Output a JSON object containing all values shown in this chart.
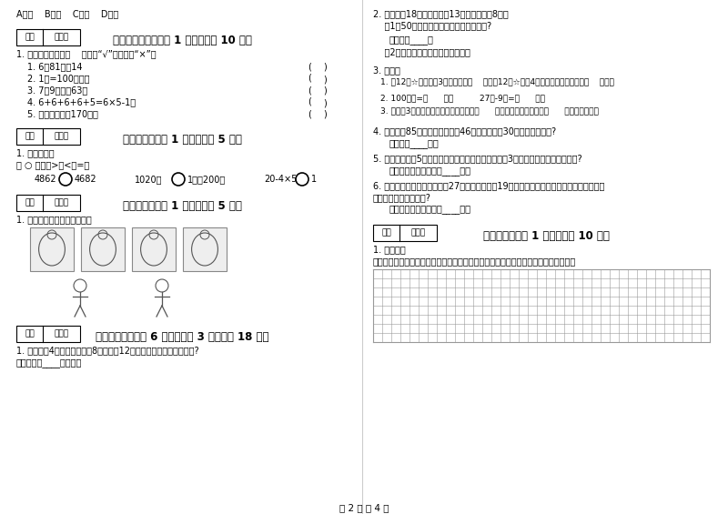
{
  "bg_color": "#ffffff",
  "page_width": 8.0,
  "page_height": 5.65,
  "dpi": 100,
  "left_col": {
    "top_text": "A、时    B、角    C、分    D、米",
    "section5_header": "五、判断对与错（共 1 大题，共计 10 分）",
    "section5_q1": "1. 判断题。对的在（    ）里画“√”，错的画“×”。",
    "section5_items": [
      "1. 6的81倍是14",
      "2. 1米=100厘米。",
      "3. 7个9相加得63。",
      "4. 6+6+6+6+5=6×5-1。",
      "5. 李老师身高是170米。"
    ],
    "section6_header": "六、比一比（共 1 大题，共计 5 分）",
    "section6_q1": "1. 我会比较。",
    "section6_instruction": "在 ○ 里填上>、<或=。",
    "section7_header": "七、连一连（共 1 大题，共计 5 分）",
    "section7_q1": "1. 连一连被子里看到的图像。",
    "section8_header": "八、解决问题（共 6 小题，每题 3 分，共计 18 分）",
    "section8_q1": "1. 果园里有4行苹果树，每行8棵，还有12棵梨树，一共有多少棵果树?",
    "section8_a1": "答：一共有____棵果树。"
  },
  "right_col": {
    "q2_line1": "2. 玩具汽车18元，玩具飞机13元，玩具轮电8元。",
    "q2_line2": "    （1）50元能买哪两件玩具，还剂多少钱?",
    "q2_a1": "答：还剂____元",
    "q2_a2": "    （2）你还能提什么问题？并解答。",
    "q3_text": "3. 填空。",
    "q3_item1": "1. 把12个☆平均分成3份，每份是（    ）个；12个☆，每4个分成一份，可以分成（    ）份。",
    "q3_item2": "2. 100厘米=（      ）米          27米-9米=（      ）米",
    "q3_item3": "3. 画一最3厘米长的线段，一般应从尺的（      ）刻度开始画起，画到（      ）厘米的地方。",
    "q4_text": "4. 食品店有85听可乐，上午卖了46听，下午卖了30听，还剂多少听?",
    "q4_answer": "答：还剂____听。",
    "q5_text": "5. 二年级一班有5个红皮球，黄皮球的个数是红皮球的3倍，黄皮球比红皮球多几个?",
    "q5_answer": "答：黄皮球比红皮球多____个。",
    "q6_line1": "6. 同学们去郊游，一年级去了27人，二年级去了19人，三年级去的人数与二年级同样多，三",
    "q6_line2": "个年级一共去了多少人?",
    "q6_answer": "答：三个年级一共去了____人。",
    "section10_header": "十、综合题（共 1 大题，共计 10 分）",
    "section10_q1": "1. 操作题。",
    "section10_instruction": "在下面的方格纸上分别画上一个四边形，一个五边形，一个六边形和一个平行四边形。"
  },
  "footer": "第 2 页 共 4 页",
  "score_box_label1": "得分",
  "score_box_label2": "评卷人"
}
